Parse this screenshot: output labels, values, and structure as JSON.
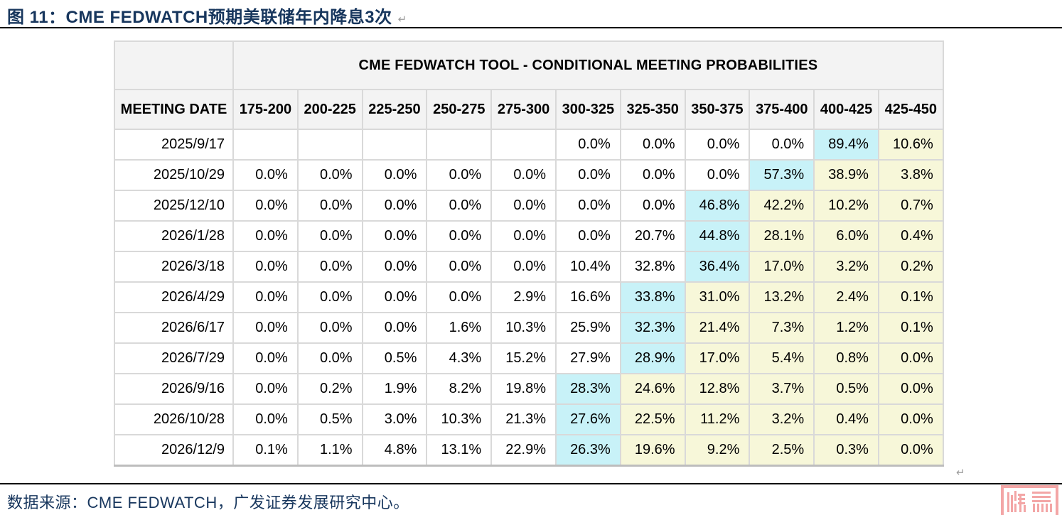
{
  "title": {
    "text": "图 11：CME FEDWATCH预期美联储年内降息3次"
  },
  "marks": {
    "paragraph_mark": "↵"
  },
  "table": {
    "band_title": "CME FEDWATCH TOOL - CONDITIONAL MEETING PROBABILITIES",
    "date_column_header": "MEETING DATE",
    "rate_columns": [
      "175-200",
      "200-225",
      "225-250",
      "250-275",
      "275-300",
      "300-325",
      "325-350",
      "350-375",
      "375-400",
      "400-425",
      "425-450"
    ],
    "rows": [
      {
        "date": "2025/9/17",
        "values": [
          "",
          "",
          "",
          "",
          "",
          "0.0%",
          "0.0%",
          "0.0%",
          "0.0%",
          "89.4%",
          "10.6%"
        ],
        "highlights": [
          "",
          "",
          "",
          "",
          "",
          "",
          "",
          "",
          "",
          "c",
          "y"
        ]
      },
      {
        "date": "2025/10/29",
        "values": [
          "0.0%",
          "0.0%",
          "0.0%",
          "0.0%",
          "0.0%",
          "0.0%",
          "0.0%",
          "0.0%",
          "57.3%",
          "38.9%",
          "3.8%"
        ],
        "highlights": [
          "",
          "",
          "",
          "",
          "",
          "",
          "",
          "",
          "c",
          "y",
          "y"
        ]
      },
      {
        "date": "2025/12/10",
        "values": [
          "0.0%",
          "0.0%",
          "0.0%",
          "0.0%",
          "0.0%",
          "0.0%",
          "0.0%",
          "46.8%",
          "42.2%",
          "10.2%",
          "0.7%"
        ],
        "highlights": [
          "",
          "",
          "",
          "",
          "",
          "",
          "",
          "c",
          "y",
          "y",
          "y"
        ]
      },
      {
        "date": "2026/1/28",
        "values": [
          "0.0%",
          "0.0%",
          "0.0%",
          "0.0%",
          "0.0%",
          "0.0%",
          "20.7%",
          "44.8%",
          "28.1%",
          "6.0%",
          "0.4%"
        ],
        "highlights": [
          "",
          "",
          "",
          "",
          "",
          "",
          "",
          "c",
          "y",
          "y",
          "y"
        ]
      },
      {
        "date": "2026/3/18",
        "values": [
          "0.0%",
          "0.0%",
          "0.0%",
          "0.0%",
          "0.0%",
          "10.4%",
          "32.8%",
          "36.4%",
          "17.0%",
          "3.2%",
          "0.2%"
        ],
        "highlights": [
          "",
          "",
          "",
          "",
          "",
          "",
          "",
          "c",
          "y",
          "y",
          "y"
        ]
      },
      {
        "date": "2026/4/29",
        "values": [
          "0.0%",
          "0.0%",
          "0.0%",
          "0.0%",
          "2.9%",
          "16.6%",
          "33.8%",
          "31.0%",
          "13.2%",
          "2.4%",
          "0.1%"
        ],
        "highlights": [
          "",
          "",
          "",
          "",
          "",
          "",
          "c",
          "y",
          "y",
          "y",
          "y"
        ]
      },
      {
        "date": "2026/6/17",
        "values": [
          "0.0%",
          "0.0%",
          "0.0%",
          "1.6%",
          "10.3%",
          "25.9%",
          "32.3%",
          "21.4%",
          "7.3%",
          "1.2%",
          "0.1%"
        ],
        "highlights": [
          "",
          "",
          "",
          "",
          "",
          "",
          "c",
          "y",
          "y",
          "y",
          "y"
        ]
      },
      {
        "date": "2026/7/29",
        "values": [
          "0.0%",
          "0.0%",
          "0.5%",
          "4.3%",
          "15.2%",
          "27.9%",
          "28.9%",
          "17.0%",
          "5.4%",
          "0.8%",
          "0.0%"
        ],
        "highlights": [
          "",
          "",
          "",
          "",
          "",
          "",
          "c",
          "y",
          "y",
          "y",
          "y"
        ]
      },
      {
        "date": "2026/9/16",
        "values": [
          "0.0%",
          "0.2%",
          "1.9%",
          "8.2%",
          "19.8%",
          "28.3%",
          "24.6%",
          "12.8%",
          "3.7%",
          "0.5%",
          "0.0%"
        ],
        "highlights": [
          "",
          "",
          "",
          "",
          "",
          "c",
          "y",
          "y",
          "y",
          "y",
          "y"
        ]
      },
      {
        "date": "2026/10/28",
        "values": [
          "0.0%",
          "0.5%",
          "3.0%",
          "10.3%",
          "21.3%",
          "27.6%",
          "22.5%",
          "11.2%",
          "3.2%",
          "0.4%",
          "0.0%"
        ],
        "highlights": [
          "",
          "",
          "",
          "",
          "",
          "c",
          "y",
          "y",
          "y",
          "y",
          "y"
        ]
      },
      {
        "date": "2026/12/9",
        "values": [
          "0.1%",
          "1.1%",
          "4.8%",
          "13.1%",
          "22.9%",
          "26.3%",
          "19.6%",
          "9.2%",
          "2.5%",
          "0.3%",
          "0.0%"
        ],
        "highlights": [
          "",
          "",
          "",
          "",
          "",
          "c",
          "y",
          "y",
          "y",
          "y",
          "y"
        ]
      }
    ]
  },
  "source": {
    "text": "数据来源：CME FEDWATCH，广发证券发展研究中心。"
  },
  "colors": {
    "cyan_highlight": "#c8f2f8",
    "yellow_highlight": "#f7f7d9",
    "title_navy": "#17365d",
    "seal_pink": "#f3a6a6",
    "header_gray": "#f3f3f3"
  }
}
